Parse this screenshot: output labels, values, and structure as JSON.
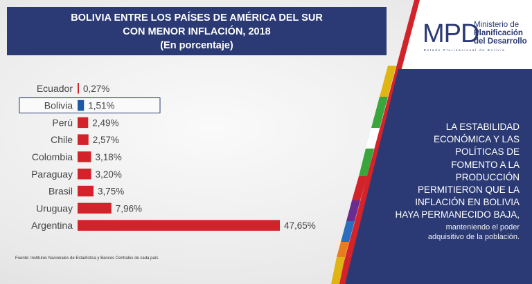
{
  "title": {
    "line1": "BOLIVIA ENTRE LOS PAÍSES DE AMÉRICA DEL SUR",
    "line2": "CON MENOR INFLACIÓN, 2018",
    "line3": "(En porcentaje)"
  },
  "logo": {
    "mark": "MPD",
    "line1": "Ministerio de",
    "line2": "Planificación",
    "line3": "del Desarrollo",
    "subtitle": "Estado Plurinacional de Bolivia"
  },
  "panel": {
    "main": "LA ESTABILIDAD ECONÓMICA Y LAS POLÍTICAS DE FOMENTO A LA PRODUCCIÓN PERMITIERON QUE LA INFLACIÓN EN BOLIVIA HAYA PERMANECIDO BAJA,",
    "main_lines": [
      "LA ESTABILIDAD",
      "ECONÓMICA Y LAS",
      "POLÍTICAS DE",
      "FOMENTO A LA",
      "PRODUCCIÓN",
      "PERMITIERON QUE LA",
      "INFLACIÓN EN BOLIVIA",
      "HAYA PERMANECIDO BAJA,"
    ],
    "sub_lines": [
      "manteniendo el poder",
      "adquisitivo de la población."
    ]
  },
  "source": "Fuente: Institutos Nacionales de Estadística y Bancos Centrales de cada país",
  "colors": {
    "banner": "#2b3a74",
    "bar_default": "#d2232a",
    "bar_highlight": "#1c5aa6",
    "highlight_box": "#2b3a74"
  },
  "chart_data": {
    "type": "bar",
    "orientation": "horizontal",
    "title": "BOLIVIA ENTRE LOS PAÍSES DE AMÉRICA DEL SUR CON MENOR INFLACIÓN, 2018",
    "subtitle": "(En porcentaje)",
    "xlabel": "",
    "ylabel": "",
    "xlim": [
      0,
      47.65
    ],
    "grid": false,
    "highlight": "Bolivia",
    "categories": [
      "Ecuador",
      "Bolivia",
      "Perú",
      "Chile",
      "Colombia",
      "Paraguay",
      "Brasil",
      "Uruguay",
      "Argentina"
    ],
    "values": [
      0.27,
      1.51,
      2.49,
      2.57,
      3.18,
      3.2,
      3.75,
      7.96,
      47.65
    ],
    "labels": [
      "0,27%",
      "1,51%",
      "2,49%",
      "2,57%",
      "3,18%",
      "3,20%",
      "3,75%",
      "7,96%",
      "47,65%"
    ]
  }
}
